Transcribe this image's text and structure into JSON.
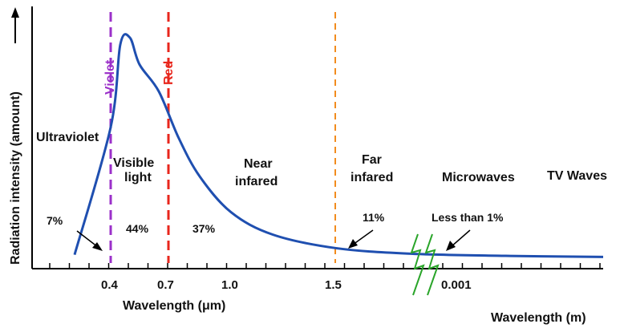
{
  "chart_data": {
    "type": "line",
    "title": "",
    "ylabel": "Radiation intensity (amount)",
    "xlabel": "Wavelength (μm)",
    "xlabel_secondary": "Wavelength (m)",
    "x_ticks": [
      "0.4",
      "0.7",
      "1.0",
      "1.5",
      "0.001"
    ],
    "grid": false,
    "series": [
      {
        "color": "#1f4fb0",
        "x": [
          0.33,
          0.4,
          0.45,
          0.5,
          0.55,
          0.65,
          0.75,
          0.85,
          1.0,
          1.2,
          1.5,
          1.8,
          2.2,
          2.6
        ],
        "y": [
          0.03,
          0.6,
          0.97,
          1.0,
          0.88,
          0.76,
          0.55,
          0.38,
          0.22,
          0.12,
          0.06,
          0.035,
          0.025,
          0.02
        ]
      }
    ],
    "markers": [
      {
        "label": "Violet",
        "x": 0.4,
        "color": "#9b30c9"
      },
      {
        "label": "Red",
        "x": 0.7,
        "color": "#e8261c"
      },
      {
        "label": "",
        "x": 1.5,
        "color": "#f28c1e"
      }
    ],
    "regions": [
      {
        "name_lines": [
          "Ultraviolet"
        ],
        "share": "7%"
      },
      {
        "name_lines": [
          "Visible",
          "light"
        ],
        "share": "44%"
      },
      {
        "name_lines": [
          "Near",
          "infared"
        ],
        "share": "37%"
      },
      {
        "name_lines": [
          "Far",
          "infared"
        ],
        "share": "11%"
      },
      {
        "name_lines": [
          "Microwaves"
        ],
        "share": "Less than 1%"
      },
      {
        "name_lines": [
          "TV Waves"
        ],
        "share": ""
      }
    ],
    "axis_break_color": "#2aa52a"
  }
}
